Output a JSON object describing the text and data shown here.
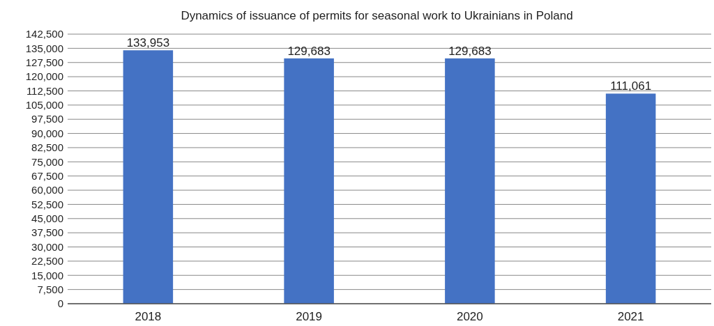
{
  "chart_data": {
    "type": "bar",
    "title": "Dynamics of issuance of permits for seasonal work to Ukrainians in Poland",
    "categories": [
      "2018",
      "2019",
      "2020",
      "2021"
    ],
    "values": [
      133953,
      129683,
      129683,
      111061
    ],
    "color": "#4472c4",
    "value_labels": [
      "133,953",
      "129,683",
      "129,683",
      "111,061"
    ],
    "ylim": [
      0,
      142500
    ],
    "yticks": [
      0,
      {
        "value": 7500,
        "label": "7,500"
      },
      {
        "value": 15000,
        "label": "15,000"
      },
      {
        "value": 22500,
        "label": "22,500"
      },
      {
        "value": 30000,
        "label": "30,000"
      },
      {
        "value": 37500,
        "label": "37,500"
      },
      {
        "value": 45000,
        "label": "45,000"
      },
      {
        "value": 52500,
        "label": "52,500"
      },
      {
        "value": 60000,
        "label": "60,000"
      },
      {
        "value": 67500,
        "label": "67,500"
      },
      {
        "value": 75000,
        "label": "75,000"
      },
      {
        "value": 82500,
        "label": "82,500"
      },
      {
        "value": 90000,
        "label": "90,000"
      },
      {
        "value": 97500,
        "label": "97,500"
      },
      {
        "value": 105000,
        "label": "105,000"
      },
      {
        "value": 112500,
        "label": "112,500"
      },
      {
        "value": 120000,
        "label": "120,000"
      },
      {
        "value": 127500,
        "label": "127,500"
      },
      {
        "value": 135000,
        "label": "135,000"
      },
      {
        "value": 142500,
        "label": "142,500"
      }
    ],
    "grid": "y"
  }
}
